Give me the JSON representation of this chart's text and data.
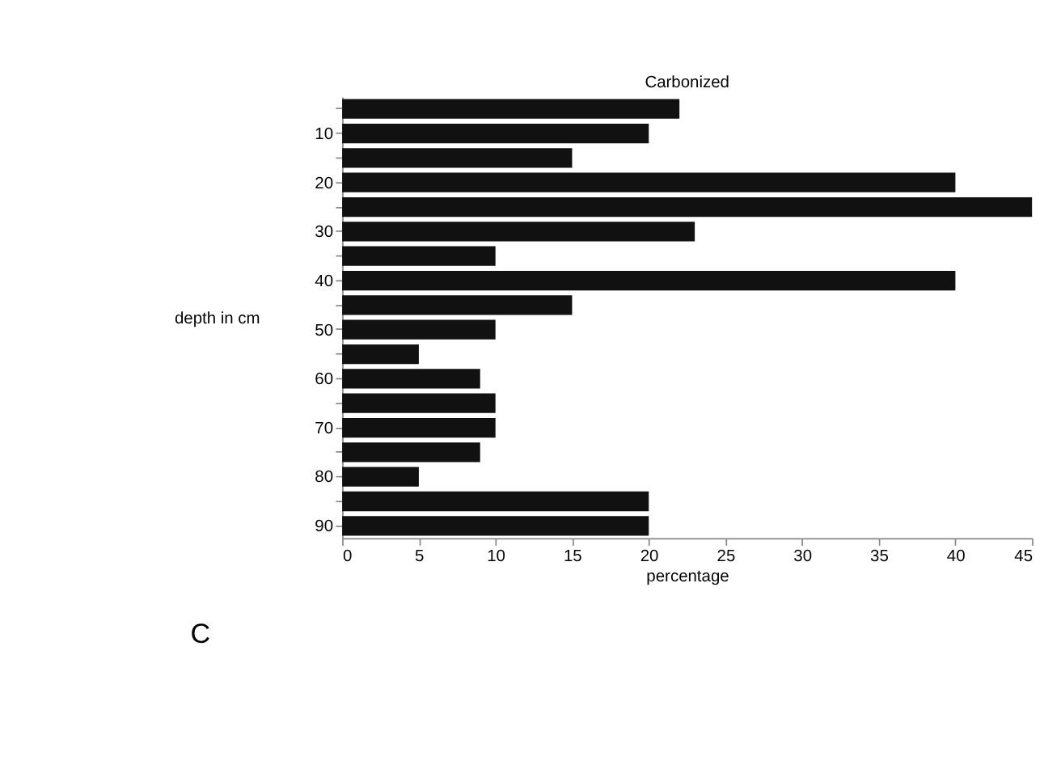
{
  "chart_data": {
    "type": "bar",
    "orientation": "horizontal",
    "title": "Carbonized",
    "xlabel": "percentage",
    "ylabel": "depth in cm",
    "categories": [
      null,
      "10",
      null,
      "20",
      null,
      "30",
      null,
      "40",
      null,
      "50",
      null,
      "60",
      null,
      "70",
      null,
      "80",
      null,
      "90"
    ],
    "values": [
      22,
      20,
      15,
      40,
      45,
      23,
      10,
      40,
      15,
      10,
      5,
      9,
      10,
      10,
      9,
      5,
      20,
      20
    ],
    "color": "#111111",
    "xlim": [
      0,
      45
    ],
    "xticks": [
      0,
      5,
      10,
      15,
      20,
      25,
      30,
      35,
      40,
      45
    ],
    "grid": false,
    "annotations": [
      "C"
    ]
  }
}
